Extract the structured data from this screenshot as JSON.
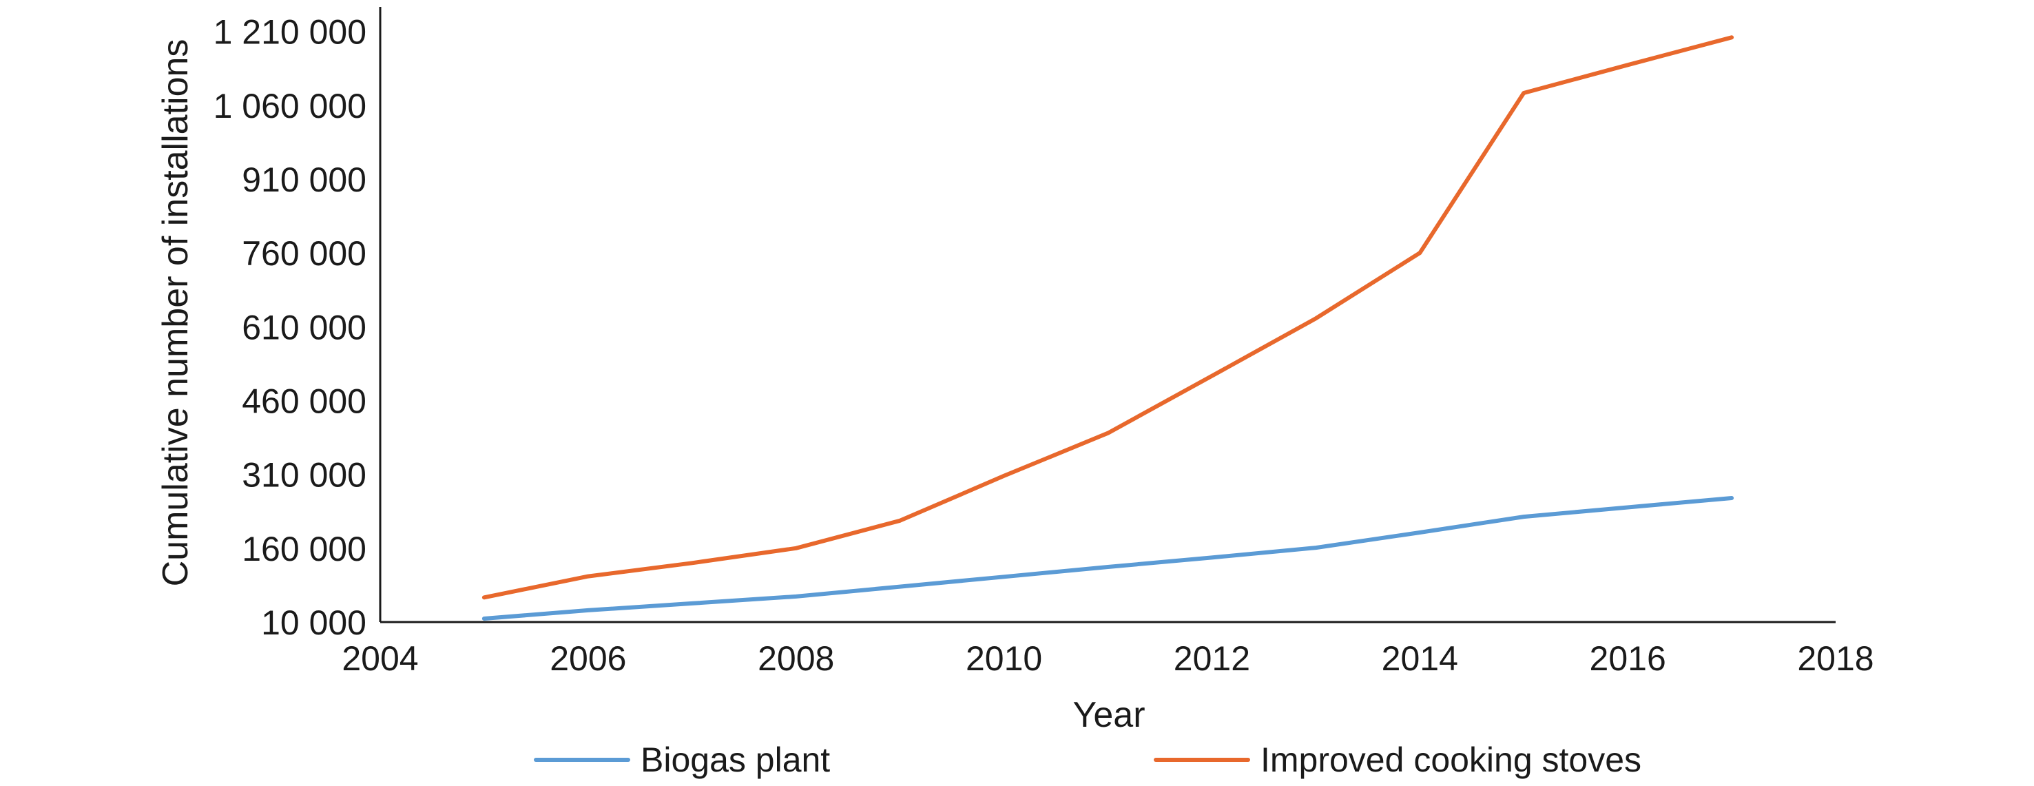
{
  "chart_data": {
    "type": "line",
    "title": "",
    "xlabel": "Year",
    "ylabel": "Cumulative  number of installations",
    "xlim": [
      2004,
      2018
    ],
    "ylim": [
      10000,
      1260000
    ],
    "x_ticks": [
      2004,
      2006,
      2008,
      2010,
      2012,
      2014,
      2016,
      2018
    ],
    "x_tick_labels": [
      "2004",
      "2006",
      "2008",
      "2010",
      "2012",
      "2014",
      "2016",
      "2018"
    ],
    "y_ticks": [
      10000,
      160000,
      310000,
      460000,
      610000,
      760000,
      910000,
      1060000,
      1210000
    ],
    "y_tick_labels": [
      "10 000",
      "160 000",
      "310 000",
      "460 000",
      "610 000",
      "760 000",
      "910 000",
      "1 060 000",
      "1 210 000"
    ],
    "grid": false,
    "legend_position": "bottom",
    "series": [
      {
        "name": "Biogas plant",
        "color": "#5b9bd5",
        "x": [
          2005,
          2006,
          2007,
          2008,
          2009,
          2010,
          2011,
          2012,
          2013,
          2014,
          2015,
          2016,
          2017
        ],
        "values": [
          17000,
          34000,
          48000,
          62000,
          82000,
          102000,
          122000,
          141000,
          161000,
          192000,
          224000,
          243000,
          262000
        ]
      },
      {
        "name": "Improved cooking stoves",
        "color": "#e8682c",
        "x": [
          2005,
          2006,
          2007,
          2008,
          2009,
          2010,
          2011,
          2012,
          2013,
          2014,
          2015,
          2016,
          2017
        ],
        "values": [
          60000,
          103000,
          130000,
          160000,
          216000,
          307000,
          394000,
          510000,
          627000,
          760000,
          1085000,
          1142000,
          1198000
        ]
      }
    ]
  }
}
